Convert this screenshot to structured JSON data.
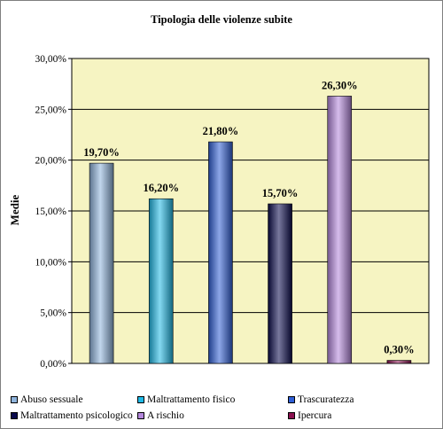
{
  "chart_data": {
    "type": "bar",
    "title": "Tipologia delle violenze subite",
    "xlabel": "",
    "ylabel": "Medie",
    "ylim": [
      0,
      30
    ],
    "yticks": [
      "0,00%",
      "5,00%",
      "10,00%",
      "15,00%",
      "20,00%",
      "25,00%",
      "30,00%"
    ],
    "grid": true,
    "legend_position": "bottom",
    "categories": [
      "Abuso sessuale",
      "Maltrattamento fisico",
      "Trascuratezza",
      "Maltrattamento psicologico",
      "A rischio",
      "Ipercura"
    ],
    "values": [
      19.7,
      16.2,
      21.8,
      15.7,
      26.3,
      0.3
    ],
    "data_labels": [
      "19,70%",
      "16,20%",
      "21,80%",
      "15,70%",
      "26,30%",
      "0,30%"
    ],
    "colors": [
      "#8fb4dc",
      "#1fb9e6",
      "#2f5fd6",
      "#0a0a4c",
      "#b487dc",
      "#8a1050"
    ],
    "background_color": "#f6f4c2"
  }
}
